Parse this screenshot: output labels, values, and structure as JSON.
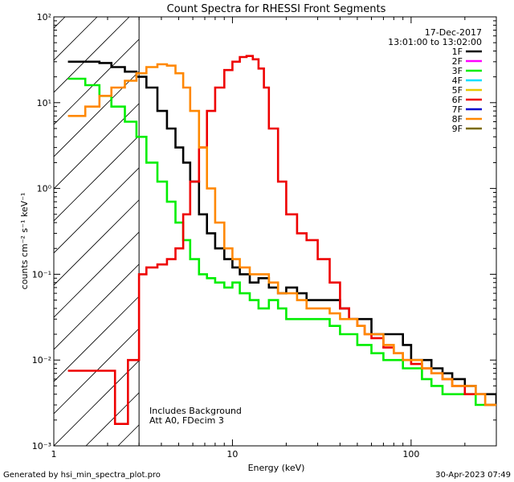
{
  "chart_data": {
    "type": "line",
    "title": "Count Spectra for RHESSI Front Segments",
    "date": "17-Dec-2017",
    "time_range": "13:01:00 to 13:02:00",
    "xlabel": "Energy (keV)",
    "ylabel": "counts cm⁻² s⁻¹ keV⁻¹",
    "x_scale": "log",
    "y_scale": "log",
    "xlim": [
      1,
      300
    ],
    "ylim": [
      0.001,
      100
    ],
    "x_ticks": [
      1,
      10,
      100
    ],
    "x_tick_labels": [
      "1",
      "10",
      "100"
    ],
    "y_ticks": [
      0.001,
      0.01,
      0.1,
      1,
      10,
      100
    ],
    "y_tick_labels": [
      "10⁻³",
      "10⁻²",
      "10⁻¹",
      "10⁰",
      "10¹",
      "10²"
    ],
    "excluded_region": [
      1,
      3
    ],
    "annotations": [
      "Includes Background",
      "Att A0, FDecim 3"
    ],
    "footer_left": "Generated by hsi_min_spectra_plot.pro",
    "footer_right": "30-Apr-2023 07:49",
    "legend": [
      {
        "name": "1F",
        "color": "#000000"
      },
      {
        "name": "2F",
        "color": "#ff00ff"
      },
      {
        "name": "3F",
        "color": "#00ee00"
      },
      {
        "name": "4F",
        "color": "#00e0ff"
      },
      {
        "name": "5F",
        "color": "#e8c800"
      },
      {
        "name": "6F",
        "color": "#ee0000"
      },
      {
        "name": "7F",
        "color": "#0000cc"
      },
      {
        "name": "8F",
        "color": "#ff8800"
      },
      {
        "name": "9F",
        "color": "#7a6a00"
      }
    ],
    "series": [
      {
        "name": "1F",
        "color": "#000000",
        "x": [
          1.2,
          1.5,
          1.8,
          2.1,
          2.5,
          2.9,
          3.3,
          3.8,
          4.3,
          4.8,
          5.3,
          5.8,
          6.5,
          7.2,
          8.0,
          9.0,
          10.0,
          11,
          12.5,
          14,
          16,
          18,
          20,
          23,
          26,
          30,
          35,
          40,
          45,
          50,
          55,
          60,
          70,
          80,
          90,
          100,
          115,
          130,
          150,
          170,
          200,
          230,
          260,
          300
        ],
        "y": [
          30,
          30,
          29,
          26,
          23,
          20,
          15,
          8,
          5,
          3,
          2,
          1.2,
          0.5,
          0.3,
          0.2,
          0.15,
          0.12,
          0.1,
          0.08,
          0.09,
          0.07,
          0.06,
          0.07,
          0.06,
          0.05,
          0.05,
          0.05,
          0.04,
          0.03,
          0.03,
          0.03,
          0.02,
          0.02,
          0.02,
          0.015,
          0.01,
          0.01,
          0.008,
          0.007,
          0.006,
          0.005,
          0.004,
          0.004,
          0.003
        ]
      },
      {
        "name": "3F",
        "color": "#00ee00",
        "x": [
          1.2,
          1.5,
          1.8,
          2.1,
          2.5,
          2.9,
          3.3,
          3.8,
          4.3,
          4.8,
          5.3,
          5.8,
          6.5,
          7.2,
          8.0,
          9.0,
          10.0,
          11,
          12.5,
          14,
          16,
          18,
          20,
          23,
          26,
          30,
          35,
          40,
          45,
          50,
          55,
          60,
          70,
          80,
          90,
          100,
          115,
          130,
          150,
          170,
          200,
          230,
          260,
          300
        ],
        "y": [
          19,
          16,
          12,
          9,
          6,
          4,
          2,
          1.2,
          0.7,
          0.4,
          0.25,
          0.15,
          0.1,
          0.09,
          0.08,
          0.07,
          0.08,
          0.06,
          0.05,
          0.04,
          0.05,
          0.04,
          0.03,
          0.03,
          0.03,
          0.03,
          0.025,
          0.02,
          0.02,
          0.015,
          0.015,
          0.012,
          0.01,
          0.01,
          0.008,
          0.008,
          0.006,
          0.005,
          0.004,
          0.004,
          0.004,
          0.003,
          0.003,
          0.003
        ]
      },
      {
        "name": "6F",
        "color": "#ee0000",
        "x": [
          1.2,
          2.0,
          2.2,
          2.4,
          2.6,
          2.8,
          3.0,
          3.3,
          3.8,
          4.3,
          4.8,
          5.3,
          5.8,
          6.5,
          7.2,
          8.0,
          9.0,
          10.0,
          11,
          12,
          13,
          14,
          15,
          16,
          18,
          20,
          23,
          26,
          30,
          35,
          40,
          45,
          50,
          55,
          60,
          70,
          80,
          90,
          100,
          115,
          130,
          150,
          170,
          200,
          230,
          260,
          300
        ],
        "y": [
          0.0075,
          0.0075,
          0.0018,
          0.0018,
          0.01,
          0.01,
          0.1,
          0.12,
          0.13,
          0.15,
          0.2,
          0.5,
          1.2,
          3,
          8,
          15,
          24,
          30,
          34,
          35,
          32,
          25,
          15,
          5,
          1.2,
          0.5,
          0.3,
          0.25,
          0.15,
          0.08,
          0.04,
          0.03,
          0.025,
          0.02,
          0.018,
          0.014,
          0.012,
          0.01,
          0.009,
          0.008,
          0.007,
          0.006,
          0.005,
          0.004,
          0.004,
          0.003,
          0.003
        ]
      },
      {
        "name": "8F",
        "color": "#ff8800",
        "x": [
          1.2,
          1.5,
          1.8,
          2.1,
          2.5,
          2.9,
          3.3,
          3.8,
          4.3,
          4.8,
          5.3,
          5.8,
          6.5,
          7.2,
          8.0,
          9.0,
          10.0,
          11,
          12.5,
          14,
          16,
          18,
          20,
          23,
          26,
          30,
          35,
          40,
          45,
          50,
          55,
          60,
          70,
          80,
          90,
          100,
          115,
          130,
          150,
          170,
          200,
          230,
          260,
          300
        ],
        "y": [
          7,
          9,
          12,
          15,
          18,
          22,
          26,
          28,
          27,
          22,
          15,
          8,
          3,
          1,
          0.4,
          0.2,
          0.15,
          0.12,
          0.1,
          0.1,
          0.08,
          0.06,
          0.06,
          0.05,
          0.04,
          0.04,
          0.035,
          0.03,
          0.03,
          0.025,
          0.02,
          0.02,
          0.015,
          0.012,
          0.01,
          0.01,
          0.008,
          0.007,
          0.006,
          0.005,
          0.005,
          0.004,
          0.003,
          0.003
        ]
      }
    ]
  }
}
